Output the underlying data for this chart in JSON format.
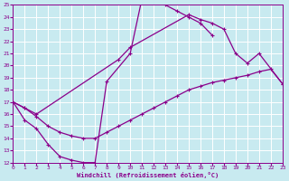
{
  "xlabel": "Windchill (Refroidissement éolien,°C)",
  "bg_color": "#c8eaf0",
  "line_color": "#8b008b",
  "grid_color": "#ffffff",
  "xlim": [
    0,
    23
  ],
  "ylim": [
    12,
    25
  ],
  "xticks": [
    0,
    1,
    2,
    3,
    4,
    5,
    6,
    7,
    8,
    9,
    10,
    11,
    12,
    13,
    14,
    15,
    16,
    17,
    18,
    19,
    20,
    21,
    22,
    23
  ],
  "yticks": [
    12,
    13,
    14,
    15,
    16,
    17,
    18,
    19,
    20,
    21,
    22,
    23,
    24,
    25
  ],
  "curve1_x": [
    0,
    1,
    2,
    3,
    4,
    5,
    6,
    7,
    8,
    10,
    11,
    12,
    13,
    14,
    15,
    16,
    17
  ],
  "curve1_y": [
    17,
    15.5,
    14.8,
    13.5,
    12.5,
    12.2,
    12.0,
    12.0,
    18.7,
    21.0,
    25.5,
    25.5,
    25.0,
    24.5,
    24.0,
    23.5,
    22.5
  ],
  "curve2_x": [
    0,
    1,
    2,
    9,
    10,
    15,
    16,
    17,
    18,
    19,
    20,
    21,
    23
  ],
  "curve2_y": [
    17,
    16.5,
    16.0,
    20.5,
    21.5,
    24.2,
    23.8,
    23.5,
    23.0,
    21.0,
    20.2,
    21.0,
    18.5
  ],
  "curve3_x": [
    0,
    1,
    2,
    3,
    4,
    5,
    6,
    7,
    8,
    9,
    10,
    11,
    12,
    13,
    14,
    15,
    16,
    17,
    18,
    19,
    20,
    21,
    22,
    23
  ],
  "curve3_y": [
    17,
    16.5,
    15.8,
    15.0,
    14.5,
    14.2,
    14.0,
    14.0,
    14.5,
    15.0,
    15.5,
    16.0,
    16.5,
    17.0,
    17.5,
    18.0,
    18.3,
    18.6,
    18.8,
    19.0,
    19.2,
    19.5,
    19.7,
    18.5
  ]
}
